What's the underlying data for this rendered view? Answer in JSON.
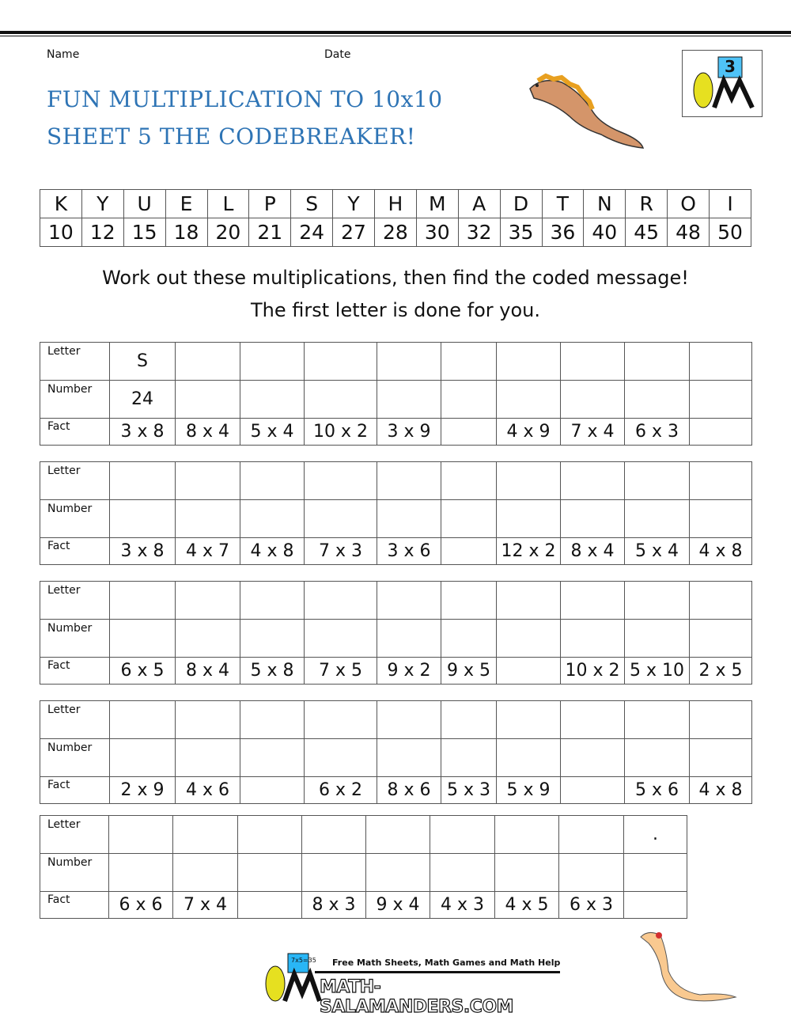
{
  "header": {
    "name_label": "Name",
    "date_label": "Date",
    "title_line1": "FUN MULTIPLICATION TO 10x10",
    "title_line2": "SHEET 5 THE CODEBREAKER!",
    "badge_number": "3"
  },
  "code_table": {
    "letters": [
      "K",
      "Y",
      "U",
      "E",
      "L",
      "P",
      "S",
      "Y",
      "H",
      "M",
      "A",
      "D",
      "T",
      "N",
      "R",
      "O",
      "I"
    ],
    "numbers": [
      "10",
      "12",
      "15",
      "18",
      "20",
      "21",
      "24",
      "27",
      "28",
      "30",
      "32",
      "35",
      "36",
      "40",
      "45",
      "48",
      "50"
    ]
  },
  "instructions": {
    "line1": "Work out these multiplications, then find the coded message!",
    "line2": "The first letter is done for you."
  },
  "row_labels": {
    "letter": "Letter",
    "number": "Number",
    "fact": "Fact"
  },
  "tables": [
    {
      "letters": [
        "S",
        "",
        "",
        "",
        "",
        "",
        "",
        "",
        "",
        " "
      ],
      "numbers": [
        "24",
        "",
        "",
        "",
        "",
        "",
        "",
        "",
        "",
        ""
      ],
      "facts": [
        "3 x 8",
        "8 x 4",
        "5 x 4",
        "10 x 2",
        "3 x 9",
        "",
        "4 x 9",
        "7 x 4",
        "6 x 3",
        ""
      ]
    },
    {
      "letters": [
        "",
        "",
        "",
        "",
        "",
        "",
        "",
        "",
        "",
        ""
      ],
      "numbers": [
        "",
        "",
        "",
        "",
        "",
        "",
        "",
        "",
        "",
        ""
      ],
      "facts": [
        "3 x 8",
        "4 x 7",
        "4 x 8",
        "7 x 3",
        "3 x 6",
        "",
        "12 x 2",
        "8 x 4",
        "5 x 4",
        "4 x 8"
      ]
    },
    {
      "letters": [
        "",
        "",
        "",
        "",
        "",
        "",
        "",
        "",
        "",
        ""
      ],
      "numbers": [
        "",
        "",
        "",
        "",
        "",
        "",
        "",
        "",
        "",
        ""
      ],
      "facts": [
        "6 x 5",
        "8 x 4",
        "5 x 8",
        "7 x 5",
        "9 x 2",
        "9 x 5",
        "",
        "10 x 2",
        "5 x 10",
        "2 x 5"
      ]
    },
    {
      "letters": [
        "",
        "",
        "",
        "",
        "",
        "",
        "",
        "",
        "",
        ""
      ],
      "numbers": [
        "",
        "",
        "",
        "",
        "",
        "",
        "",
        "",
        "",
        ""
      ],
      "facts": [
        "2 x 9",
        "4 x 6",
        "",
        "6 x 2",
        "8 x 6",
        "5 x 3",
        "5 x 9",
        "",
        "5 x 6",
        "4 x 8"
      ]
    },
    {
      "letters": [
        "",
        "",
        "",
        "",
        "",
        "",
        "",
        "",
        "."
      ],
      "numbers": [
        "",
        "",
        "",
        "",
        "",
        "",
        "",
        "",
        ""
      ],
      "facts": [
        "6 x 6",
        "7 x 4",
        "",
        "8 x 3",
        "9 x 4",
        "4 x 3",
        "4 x 5",
        "6 x 3",
        ""
      ]
    }
  ],
  "footer": {
    "tagline": "Free Math Sheets, Math Games and Math Help",
    "site": "MATH-SALAMANDERS.COM",
    "board_text": "7x5=35"
  },
  "colors": {
    "title": "#2e74b5",
    "line": "#111111"
  }
}
